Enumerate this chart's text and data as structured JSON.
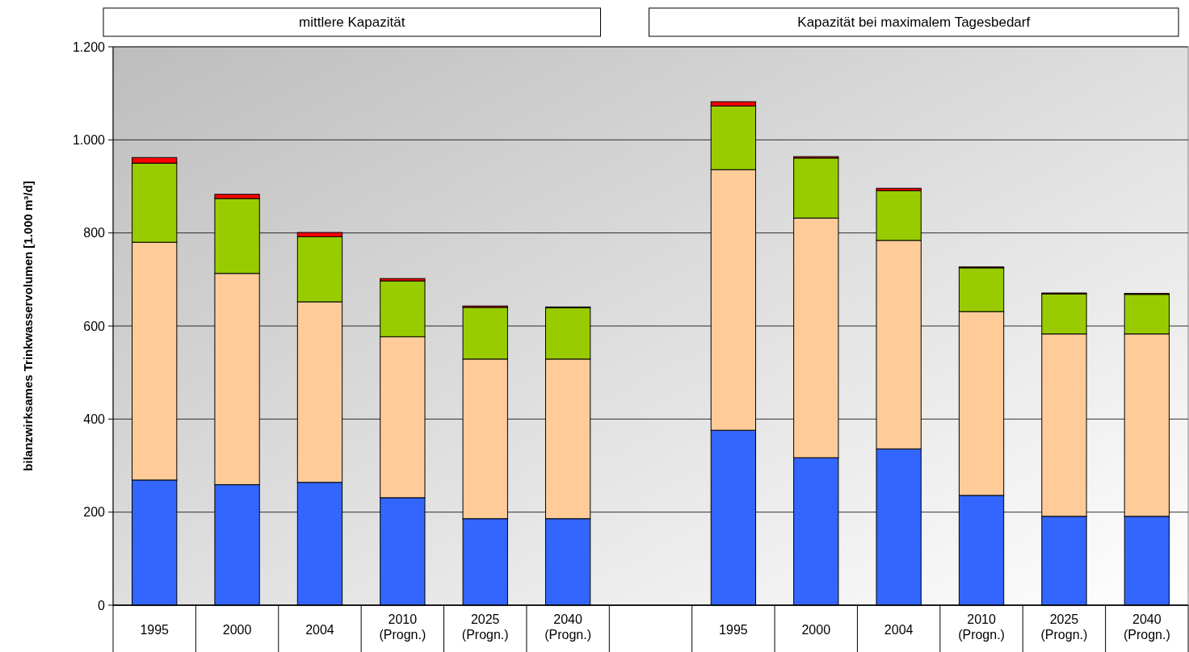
{
  "chart_data": {
    "type": "bar",
    "stacked": true,
    "ylabel": "bilanzwirksames Trinkwasservolumen [1.000 m³/d]",
    "annotations": [
      "mittlere Kapazität",
      "Kapazität bei maximalem Tagesbedarf"
    ],
    "categories": [
      "1995",
      "2000",
      "2004",
      "2010 (Progn.)",
      "2025 (Progn.)",
      "2040 (Progn.)",
      null,
      "1995",
      "2000",
      "2004",
      "2010 (Progn.)",
      "2025 (Progn.)",
      "2040 (Progn.)"
    ],
    "series": [
      {
        "color": "#3366ff",
        "values": [
          269,
          259,
          264,
          231,
          186,
          186,
          null,
          376,
          317,
          336,
          236,
          191,
          191
        ]
      },
      {
        "color": "#ffcc99",
        "values": [
          511,
          454,
          388,
          346,
          343,
          343,
          null,
          560,
          515,
          448,
          395,
          392,
          392
        ]
      },
      {
        "color": "#99cc00",
        "values": [
          170,
          161,
          140,
          120,
          111,
          110,
          null,
          137,
          129,
          107,
          94,
          86,
          85
        ]
      },
      {
        "color": "#ff0000",
        "values": [
          12,
          9,
          9,
          5,
          3,
          2,
          null,
          9,
          3,
          5,
          2,
          2,
          2
        ]
      }
    ],
    "ylim": [
      0,
      1200
    ],
    "yticks": [
      0,
      200,
      400,
      600,
      800,
      {
        "value": 1000,
        "label": "1.000"
      },
      {
        "value": 1200,
        "label": "1.200"
      }
    ],
    "grid": "y"
  }
}
